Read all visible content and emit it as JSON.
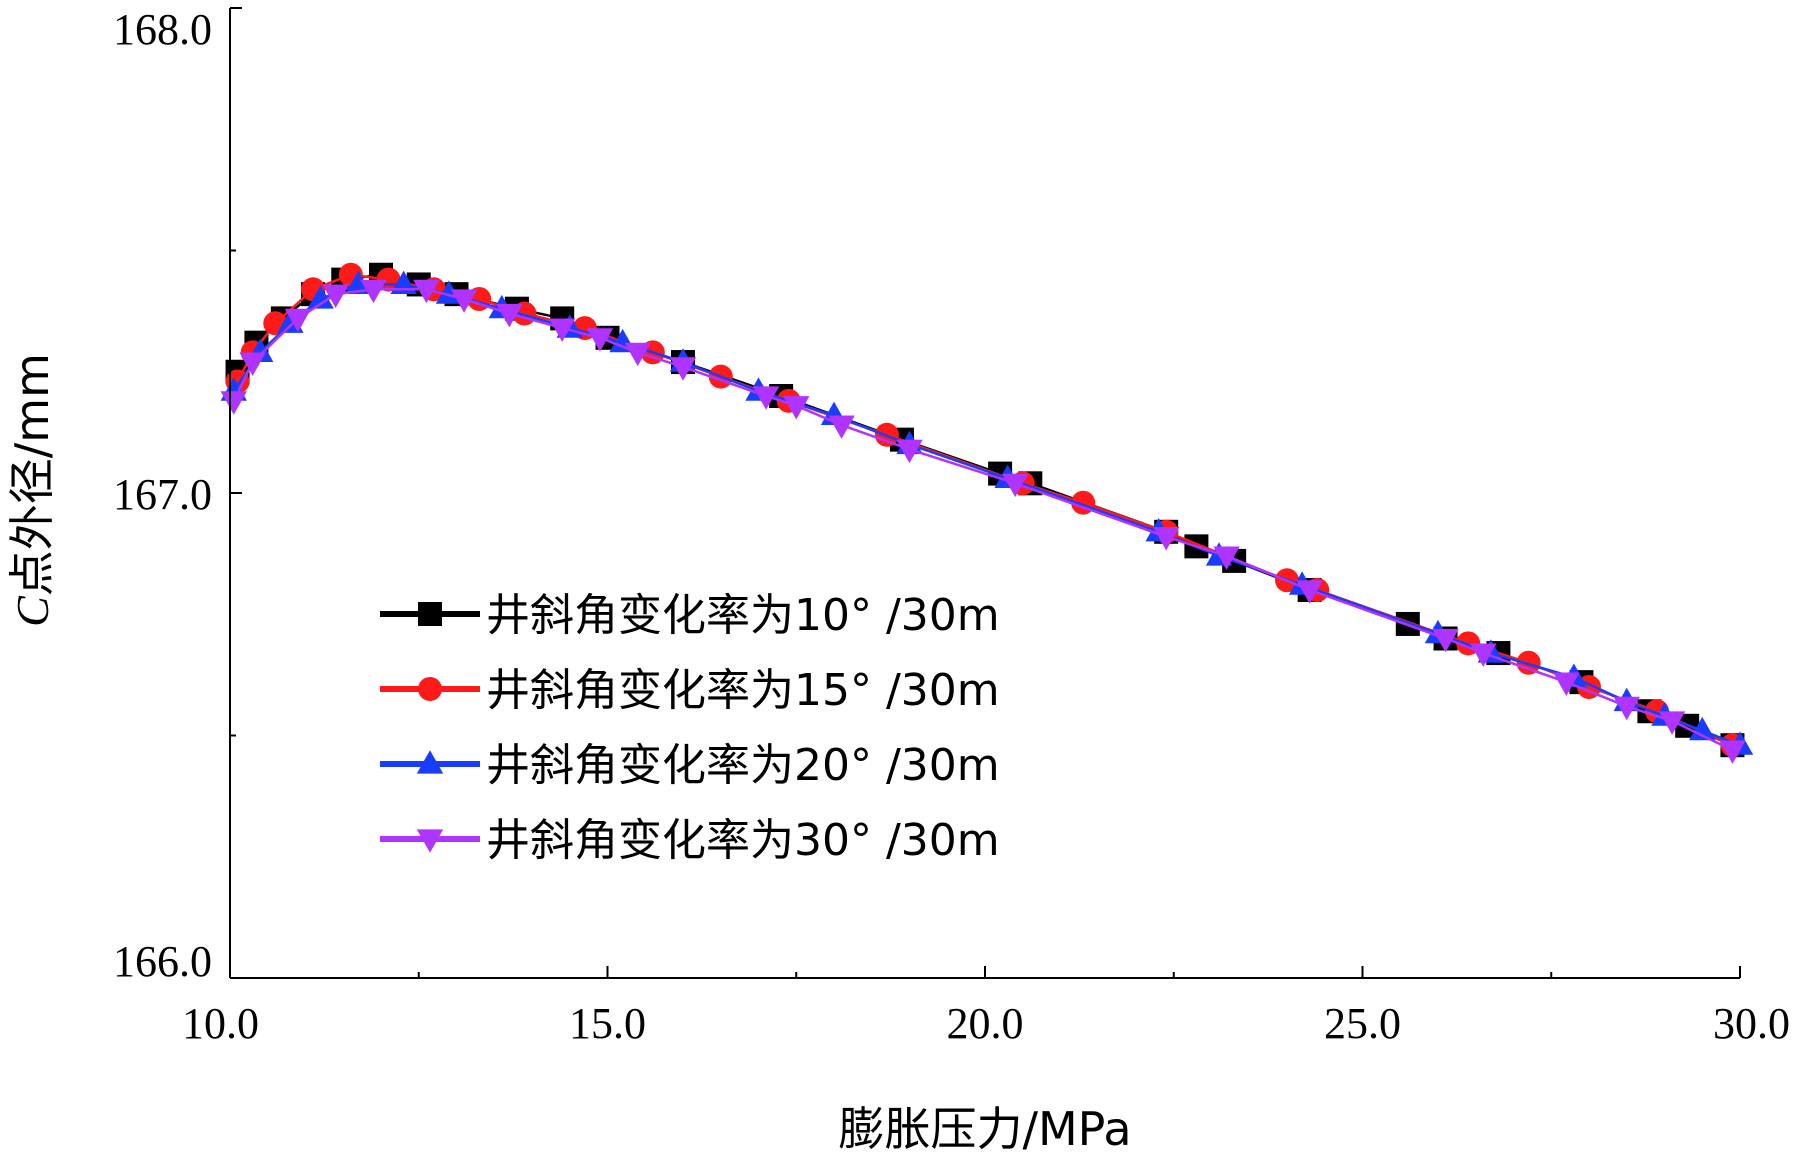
{
  "chart_data": {
    "type": "line",
    "xlabel": "膨胀压力/MPa",
    "ylabel_prefix": "C",
    "ylabel_rest": "点外径/mm",
    "xlim": [
      10,
      30
    ],
    "ylim": [
      166,
      168
    ],
    "x_ticks": [
      "10.0",
      "15.0",
      "20.0",
      "25.0",
      "30.0"
    ],
    "y_ticks": [
      "166.0",
      "167.0",
      "168.0"
    ],
    "grid": false,
    "legend_position": "center-left",
    "series": [
      {
        "name": "井斜角变化率为10° /30m",
        "color": "#000000",
        "marker": "square",
        "points": [
          [
            10.1,
            167.25
          ],
          [
            10.35,
            167.31
          ],
          [
            10.7,
            167.36
          ],
          [
            11.1,
            167.41
          ],
          [
            11.5,
            167.44
          ],
          [
            12.0,
            167.45
          ],
          [
            12.5,
            167.43
          ],
          [
            13.0,
            167.41
          ],
          [
            13.8,
            167.38
          ],
          [
            14.4,
            167.36
          ],
          [
            15.0,
            167.32
          ],
          [
            16.0,
            167.27
          ],
          [
            17.3,
            167.2
          ],
          [
            18.9,
            167.11
          ],
          [
            20.2,
            167.04
          ],
          [
            20.6,
            167.02
          ],
          [
            22.4,
            166.92
          ],
          [
            22.8,
            166.89
          ],
          [
            23.3,
            166.86
          ],
          [
            24.3,
            166.8
          ],
          [
            25.6,
            166.73
          ],
          [
            26.1,
            166.7
          ],
          [
            26.8,
            166.67
          ],
          [
            27.9,
            166.61
          ],
          [
            28.8,
            166.55
          ],
          [
            29.3,
            166.52
          ],
          [
            29.9,
            166.48
          ]
        ]
      },
      {
        "name": "井斜角变化率为15° /30m",
        "color": "#ff1a1a",
        "marker": "circle",
        "points": [
          [
            10.1,
            167.23
          ],
          [
            10.3,
            167.29
          ],
          [
            10.6,
            167.35
          ],
          [
            11.1,
            167.42
          ],
          [
            11.6,
            167.45
          ],
          [
            12.1,
            167.44
          ],
          [
            12.7,
            167.42
          ],
          [
            13.3,
            167.4
          ],
          [
            13.9,
            167.37
          ],
          [
            14.7,
            167.34
          ],
          [
            15.6,
            167.29
          ],
          [
            16.5,
            167.24
          ],
          [
            17.4,
            167.19
          ],
          [
            18.7,
            167.12
          ],
          [
            20.5,
            167.02
          ],
          [
            21.3,
            166.98
          ],
          [
            22.4,
            166.92
          ],
          [
            24.0,
            166.82
          ],
          [
            24.4,
            166.8
          ],
          [
            26.4,
            166.69
          ],
          [
            27.2,
            166.65
          ],
          [
            28.0,
            166.6
          ],
          [
            28.9,
            166.55
          ],
          [
            29.9,
            166.48
          ]
        ]
      },
      {
        "name": "井斜角变化率为20° /30m",
        "color": "#1a3cff",
        "marker": "triangle-up",
        "points": [
          [
            10.05,
            167.21
          ],
          [
            10.4,
            167.29
          ],
          [
            10.8,
            167.35
          ],
          [
            11.2,
            167.4
          ],
          [
            11.7,
            167.43
          ],
          [
            12.3,
            167.43
          ],
          [
            12.9,
            167.41
          ],
          [
            13.6,
            167.38
          ],
          [
            14.5,
            167.34
          ],
          [
            15.2,
            167.31
          ],
          [
            16.0,
            167.27
          ],
          [
            17.0,
            167.21
          ],
          [
            18.0,
            167.16
          ],
          [
            19.0,
            167.1
          ],
          [
            20.3,
            167.03
          ],
          [
            22.3,
            166.92
          ],
          [
            23.1,
            166.87
          ],
          [
            24.2,
            166.81
          ],
          [
            26.0,
            166.71
          ],
          [
            26.7,
            166.67
          ],
          [
            27.8,
            166.62
          ],
          [
            28.5,
            166.57
          ],
          [
            29.0,
            166.54
          ],
          [
            29.5,
            166.51
          ],
          [
            30.0,
            166.48
          ]
        ]
      },
      {
        "name": "井斜角变化率为30° /30m",
        "color": "#b034ff",
        "marker": "triangle-down",
        "points": [
          [
            10.05,
            167.19
          ],
          [
            10.3,
            167.27
          ],
          [
            10.9,
            167.36
          ],
          [
            11.4,
            167.41
          ],
          [
            11.9,
            167.42
          ],
          [
            12.6,
            167.42
          ],
          [
            13.1,
            167.4
          ],
          [
            13.7,
            167.37
          ],
          [
            14.4,
            167.34
          ],
          [
            14.9,
            167.32
          ],
          [
            15.4,
            167.29
          ],
          [
            16.0,
            167.26
          ],
          [
            17.1,
            167.2
          ],
          [
            17.5,
            167.18
          ],
          [
            18.1,
            167.14
          ],
          [
            19.0,
            167.09
          ],
          [
            20.4,
            167.02
          ],
          [
            22.4,
            166.91
          ],
          [
            23.2,
            166.87
          ],
          [
            24.3,
            166.8
          ],
          [
            26.1,
            166.7
          ],
          [
            26.6,
            166.67
          ],
          [
            27.7,
            166.61
          ],
          [
            28.5,
            166.56
          ],
          [
            29.1,
            166.53
          ],
          [
            29.9,
            166.47
          ]
        ]
      }
    ]
  }
}
